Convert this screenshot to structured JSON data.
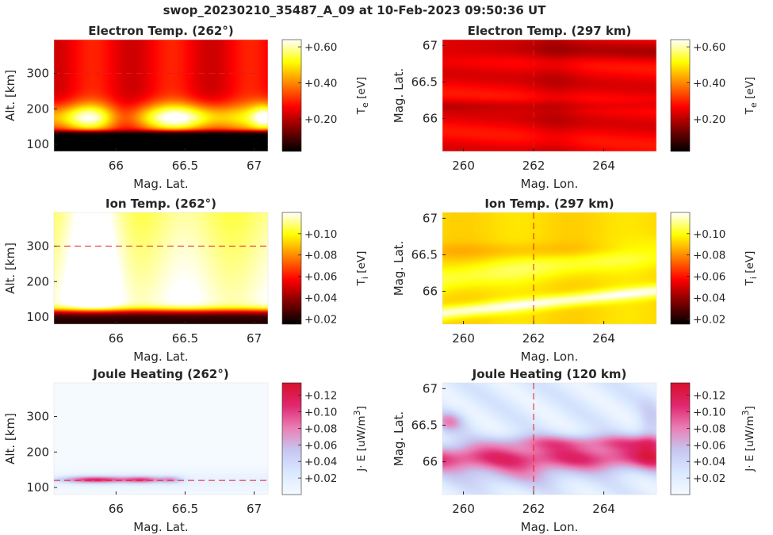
{
  "figure": {
    "title": "swop_20230210_35487_A_09 at 10-Feb-2023 09:50:36 UT"
  },
  "colormaps": {
    "hot": [
      "#000000",
      "#800000",
      "#ff0000",
      "#ff8000",
      "#ffff00",
      "#ffffff"
    ],
    "joule": [
      "#f5faff",
      "#d9e8ff",
      "#c6c6f0",
      "#ea7db4",
      "#e0266e",
      "#d8102a"
    ]
  },
  "chart_data": [
    {
      "type": "heatmap",
      "title": "Electron Temp. (262°)",
      "xlabel": "Mag. Lat.",
      "ylabel": "Alt. [km]",
      "xlim": [
        65.55,
        67.1
      ],
      "ylim": [
        80,
        395
      ],
      "xticks": [
        66,
        66.5,
        67
      ],
      "xtick_labels": [
        "66",
        "66.5",
        "67"
      ],
      "yticks": [
        100,
        200,
        300
      ],
      "ytick_labels": [
        "100",
        "200",
        "300"
      ],
      "colormap": "hot",
      "colorbar": {
        "label": "T_e [eV]",
        "clim": [
          0.02,
          0.64
        ],
        "ticks": [
          0.2,
          0.4,
          0.6
        ],
        "tick_labels": [
          "+0.20",
          "+0.40",
          "+0.60"
        ]
      },
      "reference_line": {
        "orientation": "horizontal",
        "value": 300
      },
      "field": "electron_altitude"
    },
    {
      "type": "heatmap",
      "title": "Electron Temp. (297 km)",
      "xlabel": "Mag. Lon.",
      "ylabel": "Mag. Lat.",
      "xlim": [
        259.4,
        265.5
      ],
      "ylim": [
        65.55,
        67.08
      ],
      "xticks": [
        260,
        262,
        264
      ],
      "xtick_labels": [
        "260",
        "262",
        "264"
      ],
      "yticks": [
        66,
        66.5,
        67
      ],
      "ytick_labels": [
        "66",
        "66.5",
        "67"
      ],
      "colormap": "hot",
      "colorbar": {
        "label": "T_e [eV]",
        "clim": [
          0.02,
          0.64
        ],
        "ticks": [
          0.2,
          0.4,
          0.6
        ],
        "tick_labels": [
          "+0.20",
          "+0.40",
          "+0.60"
        ]
      },
      "reference_line": {
        "orientation": "vertical",
        "value": 262
      },
      "field": "electron_map"
    },
    {
      "type": "heatmap",
      "title": "Ion Temp. (262°)",
      "xlabel": "Mag. Lat.",
      "ylabel": "Alt. [km]",
      "xlim": [
        65.55,
        67.1
      ],
      "ylim": [
        80,
        395
      ],
      "xticks": [
        66,
        66.5,
        67
      ],
      "xtick_labels": [
        "66",
        "66.5",
        "67"
      ],
      "yticks": [
        100,
        200,
        300
      ],
      "ytick_labels": [
        "100",
        "200",
        "300"
      ],
      "colormap": "hot",
      "colorbar": {
        "label": "T_i [eV]",
        "clim": [
          0.015,
          0.12
        ],
        "ticks": [
          0.02,
          0.04,
          0.06,
          0.08,
          0.1
        ],
        "tick_labels": [
          "+0.02",
          "+0.04",
          "+0.06",
          "+0.08",
          "+0.10"
        ]
      },
      "reference_line": {
        "orientation": "horizontal",
        "value": 300
      },
      "field": "ion_altitude"
    },
    {
      "type": "heatmap",
      "title": "Ion Temp. (297 km)",
      "xlabel": "Mag. Lon.",
      "ylabel": "Mag. Lat.",
      "xlim": [
        259.4,
        265.5
      ],
      "ylim": [
        65.55,
        67.08
      ],
      "xticks": [
        260,
        262,
        264
      ],
      "xtick_labels": [
        "260",
        "262",
        "264"
      ],
      "yticks": [
        66,
        66.5,
        67
      ],
      "ytick_labels": [
        "66",
        "66.5",
        "67"
      ],
      "colormap": "hot",
      "colorbar": {
        "label": "T_i [eV]",
        "clim": [
          0.015,
          0.12
        ],
        "ticks": [
          0.02,
          0.04,
          0.06,
          0.08,
          0.1
        ],
        "tick_labels": [
          "+0.02",
          "+0.04",
          "+0.06",
          "+0.08",
          "+0.10"
        ]
      },
      "reference_line": {
        "orientation": "vertical",
        "value": 262
      },
      "field": "ion_map"
    },
    {
      "type": "heatmap",
      "title": "Joule Heating (262°)",
      "xlabel": "Mag. Lat.",
      "ylabel": "Alt. [km]",
      "xlim": [
        65.55,
        67.1
      ],
      "ylim": [
        80,
        395
      ],
      "xticks": [
        66,
        66.5,
        67
      ],
      "xtick_labels": [
        "66",
        "66.5",
        "67"
      ],
      "yticks": [
        100,
        200,
        300
      ],
      "ytick_labels": [
        "100",
        "200",
        "300"
      ],
      "colormap": "joule",
      "colorbar": {
        "label": "J· E [uW/m^3]",
        "clim": [
          0.0,
          0.135
        ],
        "ticks": [
          0.02,
          0.04,
          0.06,
          0.08,
          0.1,
          0.12
        ],
        "tick_labels": [
          "+0.02",
          "+0.04",
          "+0.06",
          "+0.08",
          "+0.10",
          "+0.12"
        ]
      },
      "reference_line": {
        "orientation": "horizontal",
        "value": 120
      },
      "field": "joule_altitude"
    },
    {
      "type": "heatmap",
      "title": "Joule Heating (120 km)",
      "xlabel": "Mag. Lon.",
      "ylabel": "Mag. Lat.",
      "xlim": [
        259.4,
        265.5
      ],
      "ylim": [
        65.55,
        67.08
      ],
      "xticks": [
        260,
        262,
        264
      ],
      "xtick_labels": [
        "260",
        "262",
        "264"
      ],
      "yticks": [
        66,
        66.5,
        67
      ],
      "ytick_labels": [
        "66",
        "66.5",
        "67"
      ],
      "colormap": "joule",
      "colorbar": {
        "label": "J· E [uW/m^3]",
        "clim": [
          0.0,
          0.135
        ],
        "ticks": [
          0.02,
          0.04,
          0.06,
          0.08,
          0.1,
          0.12
        ],
        "tick_labels": [
          "+0.02",
          "+0.04",
          "+0.06",
          "+0.08",
          "+0.10",
          "+0.12"
        ]
      },
      "reference_line": {
        "orientation": "vertical",
        "value": 262
      },
      "field": "joule_map"
    }
  ]
}
